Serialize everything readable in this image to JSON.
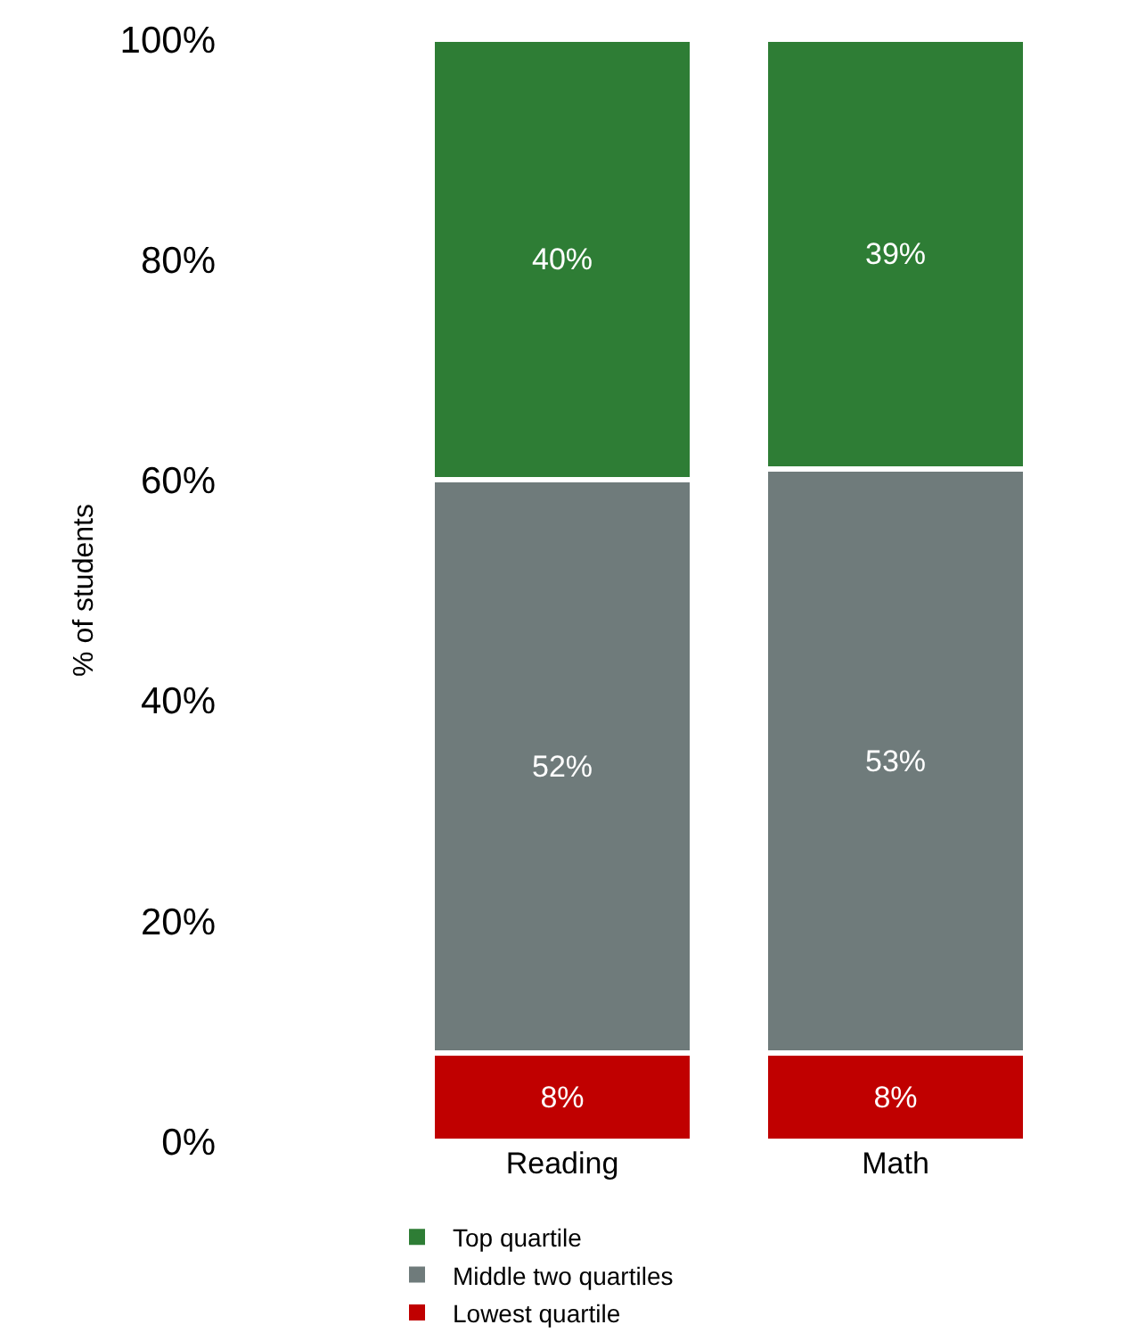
{
  "chart_data": {
    "type": "bar",
    "stacked": true,
    "ylabel": "% of students",
    "categories": [
      "Reading",
      "Math"
    ],
    "series": [
      {
        "name": "Lowest quartile",
        "color": "#c00000",
        "values": [
          8,
          8
        ],
        "value_labels": [
          "8%",
          "8%"
        ]
      },
      {
        "name": "Middle two quartiles",
        "color": "#6f7b7b",
        "values": [
          52,
          53
        ],
        "value_labels": [
          "52%",
          "53%"
        ]
      },
      {
        "name": "Top quartile",
        "color": "#2e7d35",
        "values": [
          40,
          39
        ],
        "value_labels": [
          "40%",
          "39%"
        ]
      }
    ],
    "ylim": [
      0,
      100
    ],
    "yticks": [
      {
        "value": 0,
        "label": "0%"
      },
      {
        "value": 20,
        "label": "20%"
      },
      {
        "value": 40,
        "label": "40%"
      },
      {
        "value": 60,
        "label": "60%"
      },
      {
        "value": 80,
        "label": "80%"
      },
      {
        "value": 100,
        "label": "100%"
      }
    ],
    "legend": "bottom"
  }
}
